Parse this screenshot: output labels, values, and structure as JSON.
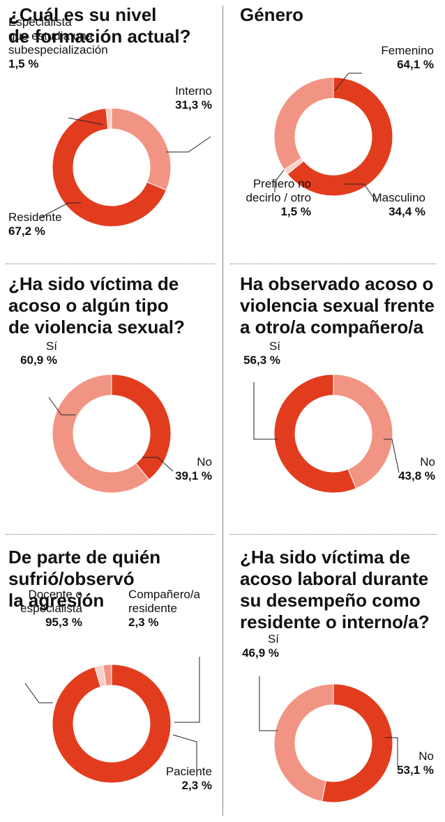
{
  "colors": {
    "dark": "#e23c1f",
    "mid": "#f29483",
    "light": "#f9cfc6"
  },
  "chart_data": [
    {
      "type": "pie",
      "title": [
        "¿Cuál es su nivel",
        "de formación actual?"
      ],
      "slices": [
        {
          "label": [
            "Interno"
          ],
          "value": 31.3,
          "value_label": "31,3 %",
          "color": "mid"
        },
        {
          "label": [
            "Residente"
          ],
          "value": 67.2,
          "value_label": "67,2 %",
          "color": "dark"
        },
        {
          "label": [
            "Especialista",
            "que estudia una",
            "subespecialización"
          ],
          "value": 1.5,
          "value_label": "1,5 %",
          "color": "light"
        }
      ]
    },
    {
      "type": "pie",
      "title": [
        "Género"
      ],
      "slices": [
        {
          "label": [
            "Femenino"
          ],
          "value": 64.1,
          "value_label": "64,1 %",
          "color": "dark"
        },
        {
          "label": [
            "Prefiero no",
            "decirlo / otro"
          ],
          "value": 1.5,
          "value_label": "1,5 %",
          "color": "light"
        },
        {
          "label": [
            "Masculino"
          ],
          "value": 34.4,
          "value_label": "34,4 %",
          "color": "mid"
        }
      ]
    },
    {
      "type": "pie",
      "title": [
        "¿Ha sido víctima de",
        "acoso o algún tipo",
        "de violencia sexual?"
      ],
      "slices": [
        {
          "label": [
            "No"
          ],
          "value": 39.1,
          "value_label": "39,1 %",
          "color": "dark"
        },
        {
          "label": [
            "Sí"
          ],
          "value": 60.9,
          "value_label": "60,9 %",
          "color": "mid"
        }
      ]
    },
    {
      "type": "pie",
      "title": [
        "Ha observado acoso o",
        "violencia sexual frente",
        "a otro/a compañero/a"
      ],
      "slices": [
        {
          "label": [
            "No"
          ],
          "value": 43.8,
          "value_label": "43,8 %",
          "color": "mid"
        },
        {
          "label": [
            "Sí"
          ],
          "value": 56.3,
          "value_label": "56,3 %",
          "color": "dark"
        }
      ]
    },
    {
      "type": "pie",
      "title": [
        "De parte de quién",
        "sufrió/observó",
        "la agresión"
      ],
      "slices": [
        {
          "label": [
            "Docente o",
            "especialista"
          ],
          "value": 95.3,
          "value_label": "95,3 %",
          "color": "dark"
        },
        {
          "label": [
            "Compañero/a",
            "residente"
          ],
          "value": 2.3,
          "value_label": "2,3 %",
          "color": "light"
        },
        {
          "label": [
            "Paciente"
          ],
          "value": 2.3,
          "value_label": "2,3 %",
          "color": "mid"
        }
      ]
    },
    {
      "type": "pie",
      "title": [
        "¿Ha sido víctima de",
        "acoso laboral durante",
        "su desempeño como",
        "residente o interno/a?"
      ],
      "slices": [
        {
          "label": [
            "No"
          ],
          "value": 53.1,
          "value_label": "53,1 %",
          "color": "dark"
        },
        {
          "label": [
            "Sí"
          ],
          "value": 46.9,
          "value_label": "46,9 %",
          "color": "mid"
        }
      ]
    }
  ]
}
